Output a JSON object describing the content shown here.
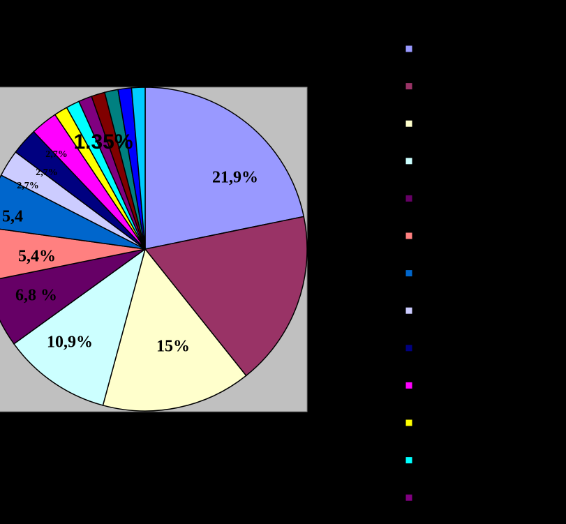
{
  "chart_data": {
    "type": "pie",
    "values": [
      21.9,
      17.6,
      15,
      10.9,
      6.8,
      5.4,
      5.4,
      2.7,
      2.7,
      2.7,
      1.35,
      1.35,
      1.35,
      1.35,
      1.35,
      1.35,
      1.35
    ],
    "value_labels": [
      "21,9%",
      null,
      "15%",
      "10,9%",
      "6,8 %",
      "5,4%",
      "5,4",
      "2,7%",
      "2,7%",
      "2,7%",
      "1.35%",
      null,
      null,
      null,
      null,
      null,
      null
    ],
    "colors": [
      "#9999ff",
      "#993366",
      "#ffffcc",
      "#ccffff",
      "#660066",
      "#ff8080",
      "#0066cc",
      "#ccccff",
      "#000080",
      "#ff00ff",
      "#ffff00",
      "#00ffff",
      "#800080",
      "#800000",
      "#008080",
      "#0000ff",
      "#00ccff"
    ],
    "legend_entries": 13
  }
}
